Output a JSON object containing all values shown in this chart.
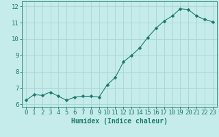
{
  "x": [
    0,
    1,
    2,
    3,
    4,
    5,
    6,
    7,
    8,
    9,
    10,
    11,
    12,
    13,
    14,
    15,
    16,
    17,
    18,
    19,
    20,
    21,
    22,
    23
  ],
  "y": [
    6.25,
    6.6,
    6.55,
    6.75,
    6.5,
    6.25,
    6.45,
    6.5,
    6.5,
    6.45,
    7.2,
    7.65,
    8.6,
    9.0,
    9.45,
    10.1,
    10.65,
    11.1,
    11.4,
    11.85,
    11.8,
    11.4,
    11.2,
    11.05
  ],
  "line_color": "#1a7a6e",
  "marker": "D",
  "marker_size": 2.5,
  "bg_color": "#c5ecea",
  "grid_color": "#a8d5d3",
  "xlabel": "Humidex (Indice chaleur)",
  "ylabel": "",
  "title": "",
  "xlim": [
    -0.5,
    23.5
  ],
  "ylim": [
    5.85,
    12.3
  ],
  "yticks": [
    6,
    7,
    8,
    9,
    10,
    11,
    12
  ],
  "xticks": [
    0,
    1,
    2,
    3,
    4,
    5,
    6,
    7,
    8,
    9,
    10,
    11,
    12,
    13,
    14,
    15,
    16,
    17,
    18,
    19,
    20,
    21,
    22,
    23
  ],
  "tick_color": "#1a7a6e",
  "label_color": "#1a7a6e",
  "font_size": 6.5,
  "xlabel_fontsize": 7.0,
  "linewidth": 0.8
}
